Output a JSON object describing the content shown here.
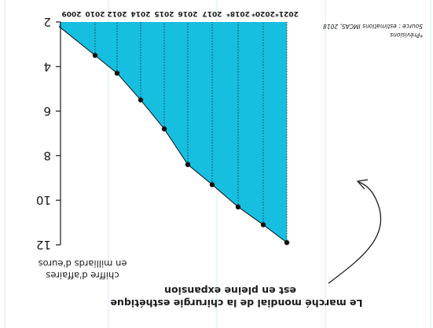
{
  "chart_data": {
    "type": "area",
    "title": "Le marché mondial de la chirurgie esthétique est en pleine expansion",
    "title_lines": [
      "Le marché mondial de la chirurgie esthétique",
      "est en pleine expansion"
    ],
    "ylabel_lines": [
      "chiffre d'affaires",
      "en milliards d'euros"
    ],
    "x": [
      "2009",
      "2010",
      "2012",
      "2014",
      "2015",
      "2016",
      "2017",
      "2018*",
      "2020*",
      "2021*"
    ],
    "values": [
      2.2,
      3.5,
      4.3,
      5.5,
      6.8,
      8.4,
      9.3,
      10.3,
      11.1,
      11.9
    ],
    "yticks": [
      "2",
      "4",
      "6",
      "8",
      "10",
      "12"
    ],
    "ylim": [
      2,
      12
    ],
    "source": "Source : estimations IMCAS, 2018",
    "footnote": "*Prévisions",
    "colors": {
      "fill": "#16bfe0",
      "line": "#111111",
      "guide": "#c6e8f2"
    },
    "orientation": "rotated-180",
    "grid": false
  }
}
